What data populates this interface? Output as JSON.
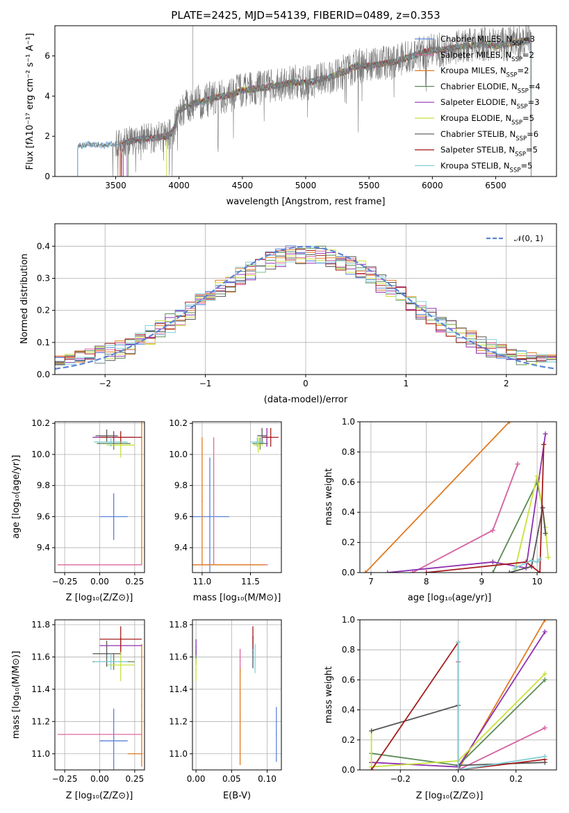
{
  "colors": [
    "#5b83d6",
    "#e0679f",
    "#e07a1e",
    "#5a8a55",
    "#8e2fb0",
    "#c9e03a",
    "#555555",
    "#a51c1c",
    "#83cfd6"
  ],
  "chart_data": [
    {
      "id": "spectrum",
      "type": "line",
      "title": "PLATE=2425, MJD=54139, FIBERID=0489, z=0.353",
      "xlabel": "wavelength [Angstrom, rest frame]",
      "ylabel": "Flux [fλ10⁻¹⁷ erg cm⁻² s⁻¹ A⁻¹]",
      "xlim": [
        3020,
        6980
      ],
      "ylim": [
        0,
        7.5
      ],
      "xticks": [
        3500,
        4000,
        4500,
        5000,
        5500,
        6000,
        6500
      ],
      "yticks": [
        0,
        2,
        4,
        6
      ],
      "grid": false,
      "legend": "top-right",
      "legend_entries": [
        "Chabrier MILES, N_SSP=3",
        "Salpeter MILES, N_SSP=2",
        "Kroupa MILES, N_SSP=2",
        "Chabrier ELODIE, N_SSP=4",
        "Salpeter ELODIE, N_SSP=3",
        "Kroupa ELODIE, N_SSP=5",
        "Chabrier STELIB, N_SSP=6",
        "Salpeter STELIB, N_SSP=5",
        "Kroupa STELIB, N_SSP=5"
      ],
      "continuum": {
        "x": [
          3200,
          3300,
          3400,
          3500,
          3600,
          3700,
          3800,
          3900,
          3950,
          4000,
          4100,
          4200,
          4300,
          4400,
          4500,
          4600,
          4700,
          4800,
          4900,
          5000,
          5100,
          5200,
          5300,
          5400,
          5500,
          5600,
          5700,
          5800,
          5900,
          6000,
          6100,
          6200,
          6300,
          6400,
          6500,
          6600,
          6700,
          6780
        ],
        "y": [
          1.5,
          1.6,
          1.55,
          1.6,
          1.7,
          1.9,
          1.9,
          2.0,
          2.2,
          3.3,
          3.6,
          3.75,
          3.95,
          4.05,
          4.3,
          4.35,
          4.45,
          4.55,
          4.7,
          4.65,
          4.8,
          4.95,
          5.2,
          5.5,
          5.5,
          5.6,
          5.7,
          5.9,
          6.1,
          6.3,
          6.3,
          6.45,
          6.5,
          6.6,
          6.5,
          6.6,
          6.7,
          6.8
        ]
      },
      "model_starts": [
        3200,
        3550,
        3530,
        3600,
        3590,
        3900,
        3560,
        3540,
        3200
      ]
    },
    {
      "id": "residuals",
      "type": "line",
      "xlabel": "(data-model)/error",
      "ylabel": "Normed distribution",
      "xlim": [
        -2.5,
        2.5
      ],
      "ylim": [
        0,
        0.47
      ],
      "xticks": [
        -2,
        -1,
        0,
        1,
        2
      ],
      "yticks": [
        0.0,
        0.1,
        0.2,
        0.3,
        0.4
      ],
      "grid": true,
      "legend": "top-right",
      "legend_entries": [
        "𝒩(0, 1)"
      ]
    },
    {
      "id": "age-vs-Z",
      "type": "scatter",
      "xlabel": "Z [log₁₀(Z/Z⊙)]",
      "ylabel": "age  [log₁₀(age/yr)]",
      "xlim": [
        -0.32,
        0.32
      ],
      "ylim": [
        9.24,
        10.21
      ],
      "xticks": [
        -0.25,
        0.0,
        0.25
      ],
      "yticks": [
        9.4,
        9.6,
        9.8,
        10.0,
        10.2
      ],
      "grid": true,
      "points": [
        {
          "c": 0,
          "x": 0.1,
          "y": 9.6,
          "xerr": 0.1,
          "yerr": 0.15
        },
        {
          "c": 1,
          "x": 0.0,
          "y": 9.29,
          "xerr": 0.3,
          "yerr": 0.0
        },
        {
          "c": 2,
          "x": 0.3,
          "y": 9.8,
          "xerr": 0.0,
          "yerr": 0.51
        },
        {
          "c": 3,
          "x": 0.1,
          "y": 10.07,
          "xerr": 0.12,
          "yerr": 0.04
        },
        {
          "c": 4,
          "x": 0.1,
          "y": 10.11,
          "xerr": 0.15,
          "yerr": 0.04
        },
        {
          "c": 5,
          "x": 0.15,
          "y": 10.06,
          "xerr": 0.1,
          "yerr": 0.08
        },
        {
          "c": 6,
          "x": 0.05,
          "y": 10.12,
          "xerr": 0.08,
          "yerr": 0.04
        },
        {
          "c": 7,
          "x": 0.15,
          "y": 10.11,
          "xerr": 0.15,
          "yerr": 0.04
        },
        {
          "c": 8,
          "x": 0.08,
          "y": 10.08,
          "xerr": 0.12,
          "yerr": 0.03
        }
      ]
    },
    {
      "id": "age-vs-mass",
      "type": "scatter",
      "xlabel": "mass [log₁₀(M/M⊙)]",
      "ylabel": "",
      "xlim": [
        10.9,
        11.82
      ],
      "ylim": [
        9.24,
        10.21
      ],
      "xticks": [
        11.0,
        11.5
      ],
      "yticks": [
        9.4,
        9.6,
        9.8,
        10.0,
        10.2
      ],
      "grid": true,
      "points": [
        {
          "c": 0,
          "x": 11.08,
          "y": 9.6,
          "xerr": 0.2,
          "yerr": 0.38
        },
        {
          "c": 1,
          "x": 11.12,
          "y": 9.7,
          "xerr": 0.0,
          "yerr": 0.41
        },
        {
          "c": 2,
          "x": 11.0,
          "y": 9.7,
          "xerr": 0.0,
          "yerr": 0.41
        },
        {
          "c": 1,
          "x": 11.3,
          "y": 9.29,
          "xerr": 0.38,
          "yerr": 0.0
        },
        {
          "c": 2,
          "x": 11.2,
          "y": 9.29,
          "xerr": 0.45,
          "yerr": 0.0
        },
        {
          "c": 3,
          "x": 11.6,
          "y": 10.07,
          "xerr": 0.08,
          "yerr": 0.04
        },
        {
          "c": 4,
          "x": 11.67,
          "y": 10.11,
          "xerr": 0.05,
          "yerr": 0.06
        },
        {
          "c": 5,
          "x": 11.58,
          "y": 10.06,
          "xerr": 0.05,
          "yerr": 0.05
        },
        {
          "c": 6,
          "x": 11.62,
          "y": 10.12,
          "xerr": 0.05,
          "yerr": 0.05
        },
        {
          "c": 7,
          "x": 11.71,
          "y": 10.11,
          "xerr": 0.08,
          "yerr": 0.06
        },
        {
          "c": 8,
          "x": 11.57,
          "y": 10.08,
          "xerr": 0.07,
          "yerr": 0.03
        }
      ]
    },
    {
      "id": "massweight-vs-age",
      "type": "line",
      "xlabel": "age  [log₁₀(age/yr)]",
      "ylabel": "mass weight",
      "xlim": [
        6.8,
        10.35
      ],
      "ylim": [
        0,
        1.0
      ],
      "xticks": [
        7,
        8,
        9,
        10
      ],
      "yticks": [
        0.0,
        0.2,
        0.4,
        0.6,
        0.8,
        1.0
      ],
      "grid": true,
      "series": [
        {
          "c": 0,
          "x": [
            7.75,
            9.2,
            9.65
          ],
          "y": [
            0.0,
            0.28,
            0.72
          ]
        },
        {
          "c": 1,
          "x": [
            7.75,
            9.2,
            9.65
          ],
          "y": [
            0.0,
            0.28,
            0.72
          ]
        },
        {
          "c": 2,
          "x": [
            6.9,
            9.5
          ],
          "y": [
            0.0,
            1.0
          ]
        },
        {
          "c": 3,
          "x": [
            9.2,
            10.0,
            10.1
          ],
          "y": [
            0.0,
            0.6,
            0.43
          ]
        },
        {
          "c": 4,
          "x": [
            7.3,
            9.2,
            9.8,
            10.15
          ],
          "y": [
            0.0,
            0.07,
            0.03,
            0.92
          ]
        },
        {
          "c": 5,
          "x": [
            9.6,
            10.0,
            10.15,
            10.2
          ],
          "y": [
            0.02,
            0.64,
            0.3,
            0.1
          ]
        },
        {
          "c": 6,
          "x": [
            9.5,
            9.9,
            10.1,
            10.15
          ],
          "y": [
            0.0,
            0.04,
            0.43,
            0.26
          ]
        },
        {
          "c": 7,
          "x": [
            8.0,
            9.8,
            10.05,
            10.12
          ],
          "y": [
            0.0,
            0.07,
            0.0,
            0.85
          ]
        },
        {
          "c": 8,
          "x": [
            9.6,
            9.9,
            10.0,
            10.05
          ],
          "y": [
            0.03,
            0.08,
            0.07,
            0.09
          ]
        }
      ]
    },
    {
      "id": "mass-vs-Z",
      "type": "scatter",
      "xlabel": "Z [log₁₀(Z/Z⊙)]",
      "ylabel": "mass [log₁₀(M/M⊙)]",
      "xlim": [
        -0.32,
        0.32
      ],
      "ylim": [
        10.9,
        11.83
      ],
      "xticks": [
        -0.25,
        0.0,
        0.25
      ],
      "yticks": [
        11.0,
        11.2,
        11.4,
        11.6,
        11.8
      ],
      "grid": true,
      "points": [
        {
          "c": 0,
          "x": 0.1,
          "y": 11.08,
          "xerr": 0.1,
          "yerr": 0.2
        },
        {
          "c": 1,
          "x": 0.0,
          "y": 11.12,
          "xerr": 0.3,
          "yerr": 0.0
        },
        {
          "c": 2,
          "x": 0.3,
          "y": 11.3,
          "xerr": 0.0,
          "yerr": 0.38
        },
        {
          "c": 2,
          "x": 0.25,
          "y": 11.0,
          "xerr": 0.05,
          "yerr": 0.0
        },
        {
          "c": 3,
          "x": 0.1,
          "y": 11.57,
          "xerr": 0.15,
          "yerr": 0.05
        },
        {
          "c": 4,
          "x": 0.15,
          "y": 11.67,
          "xerr": 0.15,
          "yerr": 0.05
        },
        {
          "c": 5,
          "x": 0.15,
          "y": 11.55,
          "xerr": 0.1,
          "yerr": 0.1
        },
        {
          "c": 6,
          "x": 0.05,
          "y": 11.62,
          "xerr": 0.1,
          "yerr": 0.08
        },
        {
          "c": 7,
          "x": 0.15,
          "y": 11.71,
          "xerr": 0.15,
          "yerr": 0.08
        },
        {
          "c": 8,
          "x": 0.08,
          "y": 11.57,
          "xerr": 0.12,
          "yerr": 0.05
        }
      ]
    },
    {
      "id": "mass-vs-EBV",
      "type": "scatter",
      "xlabel": "E(B-V)",
      "ylabel": "",
      "xlim": [
        -0.005,
        0.12
      ],
      "ylim": [
        10.9,
        11.83
      ],
      "xticks": [
        0.0,
        0.05,
        0.1
      ],
      "yticks": [
        11.0,
        11.2,
        11.4,
        11.6,
        11.8
      ],
      "grid": true,
      "points": [
        {
          "c": 0,
          "x": 0.113,
          "y": 11.12,
          "xerr": 0.0,
          "yerr": 0.17
        },
        {
          "c": 1,
          "x": 0.062,
          "y": 11.58,
          "xerr": 0.0,
          "yerr": 0.07
        },
        {
          "c": 2,
          "x": 0.062,
          "y": 11.23,
          "xerr": 0.0,
          "yerr": 0.3
        },
        {
          "c": 3,
          "x": 0.0,
          "y": 11.6,
          "xerr": 0.0,
          "yerr": 0.05
        },
        {
          "c": 4,
          "x": 0.0,
          "y": 11.66,
          "xerr": 0.0,
          "yerr": 0.05
        },
        {
          "c": 5,
          "x": 0.0,
          "y": 11.52,
          "xerr": 0.0,
          "yerr": 0.07
        },
        {
          "c": 6,
          "x": 0.08,
          "y": 11.63,
          "xerr": 0.0,
          "yerr": 0.1
        },
        {
          "c": 7,
          "x": 0.08,
          "y": 11.72,
          "xerr": 0.0,
          "yerr": 0.07
        },
        {
          "c": 8,
          "x": 0.083,
          "y": 11.59,
          "xerr": 0.0,
          "yerr": 0.09
        }
      ]
    },
    {
      "id": "massweight-vs-Z",
      "type": "line",
      "xlabel": "Z [log₁₀(Z/Z⊙)]",
      "ylabel": "mass weight",
      "xlim": [
        -0.34,
        0.34
      ],
      "ylim": [
        0,
        1.0
      ],
      "xticks": [
        -0.2,
        0.0,
        0.2
      ],
      "yticks": [
        0.0,
        0.2,
        0.4,
        0.6,
        0.8,
        1.0
      ],
      "grid": true,
      "series": [
        {
          "c": 0,
          "x": [
            0.0,
            0.0,
            0.3
          ],
          "y": [
            0.72,
            0.0,
            0.28
          ]
        },
        {
          "c": 1,
          "x": [
            0.0,
            0.0,
            0.3
          ],
          "y": [
            0.72,
            0.0,
            0.28
          ]
        },
        {
          "c": 2,
          "x": [
            0.0,
            0.3
          ],
          "y": [
            0.0,
            1.0
          ]
        },
        {
          "c": 3,
          "x": [
            -0.3,
            0.0,
            0.3
          ],
          "y": [
            0.11,
            0.03,
            0.6
          ]
        },
        {
          "c": 4,
          "x": [
            -0.3,
            0.0,
            0.3
          ],
          "y": [
            0.05,
            0.02,
            0.92
          ]
        },
        {
          "c": 5,
          "x": [
            -0.3,
            -0.3,
            0.0,
            0.3
          ],
          "y": [
            0.26,
            0.02,
            0.06,
            0.64
          ]
        },
        {
          "c": 6,
          "x": [
            -0.3,
            0.0,
            0.0,
            0.3
          ],
          "y": [
            0.26,
            0.43,
            0.03,
            0.05
          ]
        },
        {
          "c": 7,
          "x": [
            -0.3,
            0.0,
            0.0,
            0.3
          ],
          "y": [
            0.0,
            0.85,
            0.0,
            0.07
          ]
        },
        {
          "c": 8,
          "x": [
            0.0,
            0.0,
            0.3
          ],
          "y": [
            0.85,
            0.0,
            0.09
          ]
        }
      ]
    }
  ]
}
